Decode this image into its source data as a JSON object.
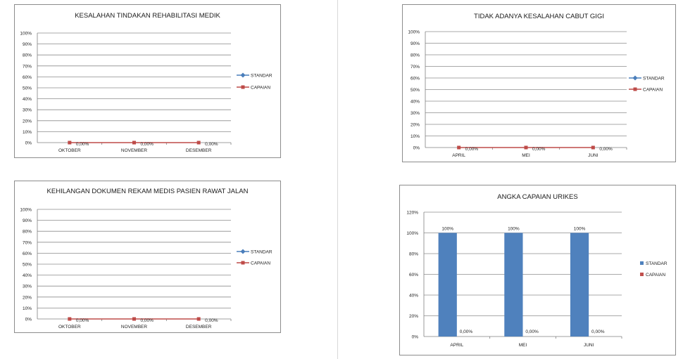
{
  "chart_data": [
    {
      "type": "line",
      "title": "KESALAHAN TINDAKAN REHABILITASI MEDIK",
      "categories": [
        "OKTOBER",
        "NOVEMBER",
        "DESEMBER"
      ],
      "y_ticks": [
        "0%",
        "10%",
        "20%",
        "30%",
        "40%",
        "50%",
        "60%",
        "70%",
        "80%",
        "90%",
        "100%"
      ],
      "ylim": [
        0,
        100
      ],
      "series": [
        {
          "name": "STANDAR",
          "color": "#4a7ebb",
          "marker": "diamond",
          "values": [
            null,
            null,
            null
          ],
          "labels": [
            "",
            "",
            ""
          ]
        },
        {
          "name": "CAPAIAN",
          "color": "#be4b48",
          "marker": "square",
          "values": [
            0,
            0,
            0
          ],
          "labels": [
            "0,00%",
            "0,00%",
            "0,00%"
          ]
        }
      ],
      "grid": true,
      "legend": "right"
    },
    {
      "type": "line",
      "title": "TIDAK ADANYA KESALAHAN CABUT GIGI",
      "categories": [
        "APRIL",
        "MEI",
        "JUNI"
      ],
      "y_ticks": [
        "0%",
        "10%",
        "20%",
        "30%",
        "40%",
        "50%",
        "60%",
        "70%",
        "80%",
        "90%",
        "100%"
      ],
      "ylim": [
        0,
        100
      ],
      "series": [
        {
          "name": "STANDAR",
          "color": "#4a7ebb",
          "marker": "diamond",
          "values": [
            null,
            null,
            null
          ],
          "labels": [
            "",
            "",
            ""
          ]
        },
        {
          "name": "CAPAIAN",
          "color": "#be4b48",
          "marker": "square",
          "values": [
            0,
            0,
            0
          ],
          "labels": [
            "0,00%",
            "0,00%",
            "0,00%"
          ]
        }
      ],
      "grid": true,
      "legend": "right"
    },
    {
      "type": "line",
      "title": "KEHILANGAN DOKUMEN REKAM MEDIS PASIEN RAWAT JALAN",
      "categories": [
        "OKTOBER",
        "NOVEMBER",
        "DESEMBER"
      ],
      "y_ticks": [
        "0%",
        "10%",
        "20%",
        "30%",
        "40%",
        "50%",
        "60%",
        "70%",
        "80%",
        "90%",
        "100%"
      ],
      "ylim": [
        0,
        100
      ],
      "series": [
        {
          "name": "STANDAR",
          "color": "#4a7ebb",
          "marker": "diamond",
          "values": [
            null,
            null,
            null
          ],
          "labels": [
            "",
            "",
            ""
          ]
        },
        {
          "name": "CAPAIAN",
          "color": "#be4b48",
          "marker": "square",
          "values": [
            0,
            0,
            0
          ],
          "labels": [
            "0,00%",
            "0,00%",
            "0,00%"
          ]
        }
      ],
      "grid": true,
      "legend": "right"
    },
    {
      "type": "bar",
      "title": "ANGKA CAPAIAN URIKES",
      "categories": [
        "APRIL",
        "MEI",
        "JUNI"
      ],
      "y_ticks": [
        "0%",
        "20%",
        "40%",
        "60%",
        "80%",
        "100%",
        "120%"
      ],
      "ylim": [
        0,
        120
      ],
      "series": [
        {
          "name": "STANDAR",
          "color": "#4f81bd",
          "values": [
            100,
            100,
            100
          ],
          "labels": [
            "100%",
            "100%",
            "100%"
          ]
        },
        {
          "name": "CAPAIAN",
          "color": "#c0504d",
          "values": [
            0,
            0,
            0
          ],
          "labels": [
            "0,00%",
            "0,00%",
            "0,00%"
          ]
        }
      ],
      "grid": true,
      "legend": "right"
    }
  ]
}
